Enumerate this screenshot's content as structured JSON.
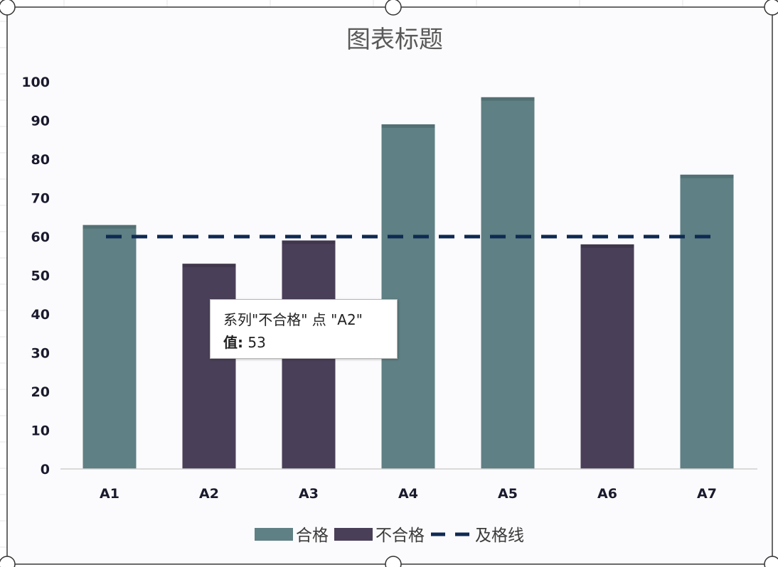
{
  "chart_data": {
    "type": "bar",
    "title": "图表标题",
    "categories": [
      "A1",
      "A2",
      "A3",
      "A4",
      "A5",
      "A6",
      "A7"
    ],
    "series": [
      {
        "name": "合格",
        "values": [
          63,
          0,
          0,
          89,
          96,
          0,
          76
        ],
        "color": "#5f8084"
      },
      {
        "name": "不合格",
        "values": [
          0,
          53,
          59,
          0,
          0,
          58,
          0
        ],
        "color": "#4a3f58"
      },
      {
        "name": "及格线",
        "type": "line",
        "style": "dashed",
        "values": [
          60,
          60,
          60,
          60,
          60,
          60,
          60
        ],
        "color": "#0f2a52"
      }
    ],
    "ylim": [
      0,
      100
    ],
    "yticks": [
      0,
      10,
      20,
      30,
      40,
      50,
      60,
      70,
      80,
      90,
      100
    ],
    "grid": false,
    "legend": "bottom"
  },
  "tooltip": {
    "line1": "系列\"不合格\" 点 \"A2\"",
    "value_label": "值:",
    "value": "53"
  }
}
